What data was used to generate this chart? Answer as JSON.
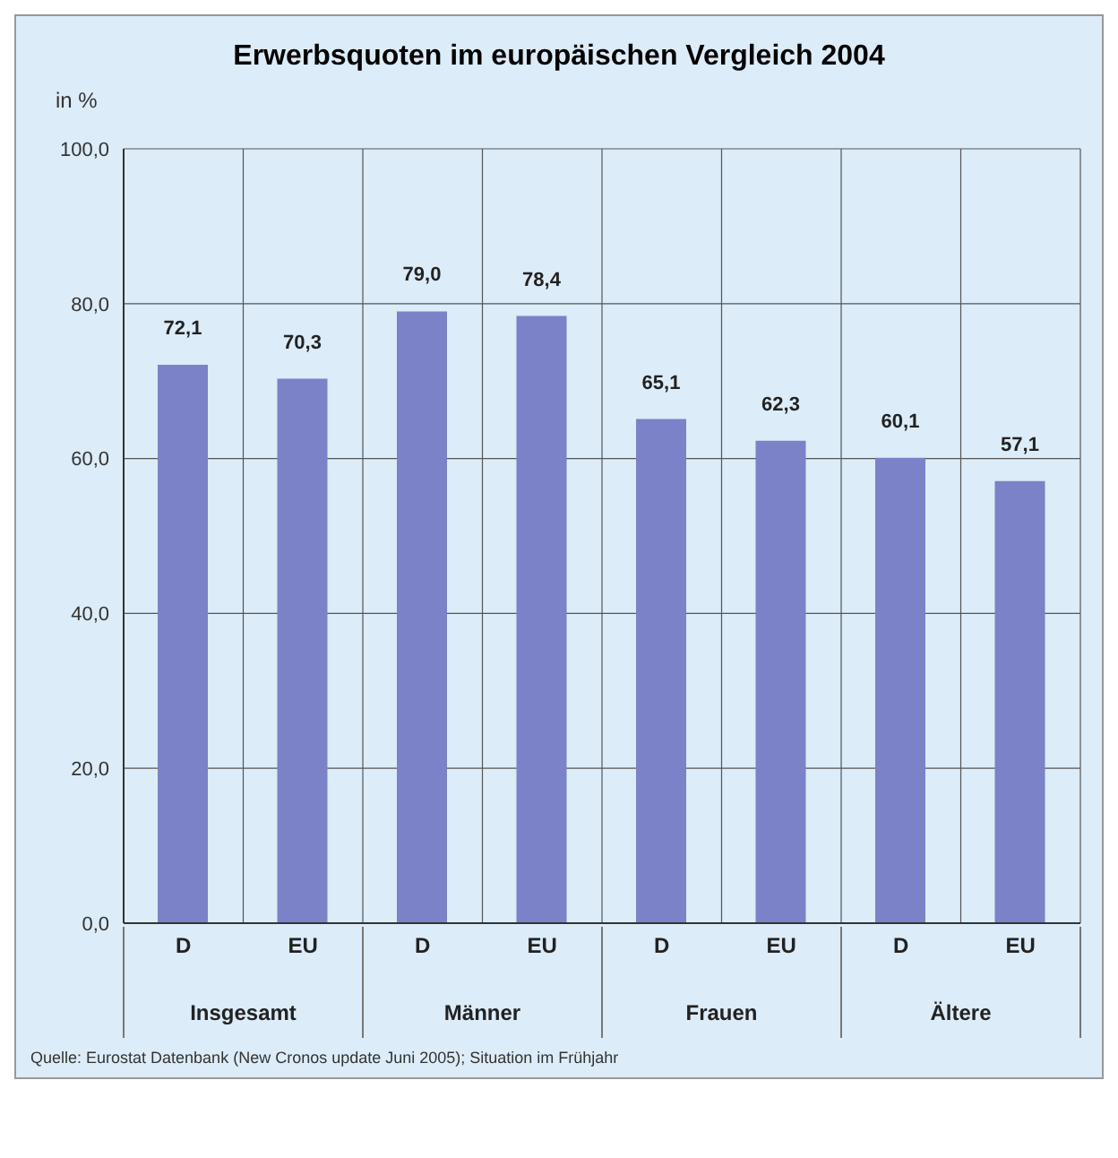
{
  "chart_data": {
    "type": "bar",
    "title": "Erwerbsquoten im europäischen Vergleich 2004",
    "ylabel": "in %",
    "categories": [
      "D",
      "EU",
      "D",
      "EU",
      "D",
      "EU",
      "D",
      "EU"
    ],
    "values": [
      72.1,
      70.3,
      79.0,
      78.4,
      65.1,
      62.3,
      60.1,
      57.1
    ],
    "value_labels": [
      "72,1",
      "70,3",
      "79,0",
      "78,4",
      "65,1",
      "62,3",
      "60,1",
      "57,1"
    ],
    "color": "#7b82c8",
    "ylim": [
      0,
      100
    ],
    "yticks": [
      {
        "value": 0,
        "label": "0,0"
      },
      {
        "value": 20,
        "label": "20,0"
      },
      {
        "value": 40,
        "label": "40,0"
      },
      {
        "value": 60,
        "label": "60,0"
      },
      {
        "value": 80,
        "label": "80,0"
      },
      {
        "value": 100,
        "label": "100,0"
      }
    ],
    "grid": true,
    "annotations": [
      "Insgesamt",
      "Männer",
      "Frauen",
      "Ältere",
      "Quelle: Eurostat Datenbank (New Cronos update Juni 2005); Situation im Frühjahr"
    ]
  }
}
